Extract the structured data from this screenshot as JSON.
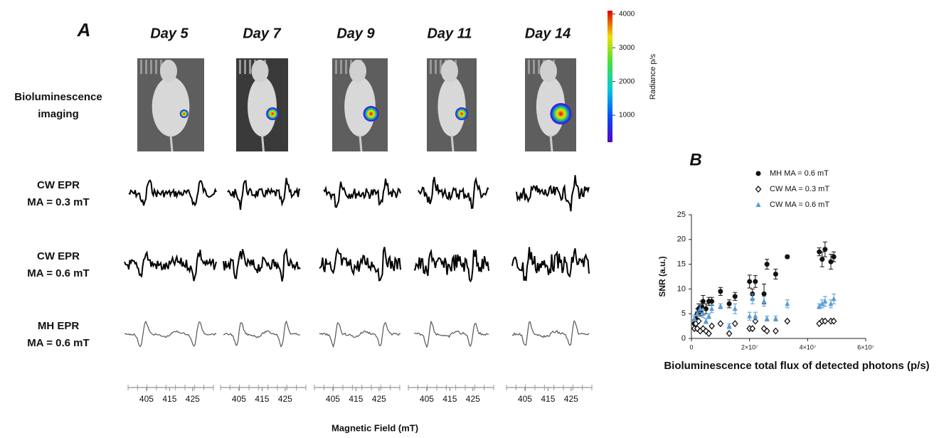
{
  "panel_a": {
    "label": "A",
    "days": [
      "Day 5",
      "Day 7",
      "Day 9",
      "Day 11",
      "Day 14"
    ],
    "rows": [
      [
        "Bioluminescence",
        "imaging"
      ],
      [
        "CW EPR",
        "MA = 0.3 mT"
      ],
      [
        "CW EPR",
        "MA = 0.6 mT"
      ],
      [
        "MH EPR",
        "MA = 0.6 mT"
      ]
    ],
    "colorbar": {
      "label": "Radiance p/s",
      "lim": [
        200,
        4100
      ],
      "ticks": [
        1000,
        2000,
        3000,
        4000
      ]
    },
    "field_axis": {
      "label": "Magnetic Field (mT)",
      "xlim": [
        397,
        434
      ],
      "xticks": [
        405,
        415,
        425
      ]
    }
  },
  "chart_data": {
    "type": "scatter",
    "panel_label": "B",
    "xlabel": "Bioluminescence total flux of detected photons (p/s)",
    "ylabel": "SNR (a.u.)",
    "xlim": [
      0,
      60000000
    ],
    "xticks": [
      {
        "value": 0,
        "label": "0"
      },
      {
        "value": 20000000,
        "label": "2×10⁷"
      },
      {
        "value": 40000000,
        "label": "4×10⁷"
      },
      {
        "value": 60000000,
        "label": "6×10⁷"
      }
    ],
    "ylim": [
      0,
      25
    ],
    "yticks": [
      0,
      5,
      10,
      15,
      20,
      25
    ],
    "series": [
      {
        "name": "MH MA = 0.6 mT",
        "color": "#111111",
        "marker": "circle",
        "x": [
          1000000,
          1500000,
          2000000,
          2500000,
          3000000,
          3500000,
          4000000,
          5000000,
          6000000,
          7000000,
          10000000,
          13000000,
          15000000,
          20000000,
          21000000,
          22000000,
          25000000,
          26000000,
          29000000,
          33000000,
          44000000,
          45000000,
          46000000,
          48000000,
          49000000
        ],
        "values": [
          3,
          4,
          5,
          6,
          5.5,
          6.5,
          7.5,
          6,
          7.5,
          7.5,
          9.5,
          7,
          8.5,
          11.5,
          9,
          11.5,
          9,
          15,
          13,
          16.5,
          17.5,
          16,
          18,
          15.5,
          16.5
        ],
        "errors": [
          0.8,
          0.8,
          1,
          1,
          1,
          1,
          1.2,
          1,
          0.8,
          0.8,
          0.8,
          0.8,
          0.8,
          1.3,
          1,
          1.2,
          2,
          1,
          1,
          0.3,
          0.8,
          1.5,
          1.5,
          1.5,
          1
        ]
      },
      {
        "name": "CW MA = 0.3 mT",
        "color": "#111111",
        "marker": "diamond",
        "x": [
          1000000,
          1500000,
          2000000,
          2500000,
          3000000,
          4000000,
          5000000,
          6000000,
          7000000,
          10000000,
          13000000,
          15000000,
          20000000,
          21000000,
          22000000,
          25000000,
          26000000,
          29000000,
          33000000,
          44000000,
          45000000,
          46000000,
          48000000,
          49000000
        ],
        "values": [
          2,
          3,
          2,
          3.5,
          1.5,
          2,
          1.5,
          1,
          2.5,
          3,
          1,
          3,
          2,
          2,
          3.5,
          2,
          1.5,
          1.5,
          3.5,
          3,
          3.5,
          3.5,
          3.5,
          3.5
        ]
      },
      {
        "name": "CW MA = 0.6 mT",
        "color": "#5b9bd5",
        "marker": "triangle",
        "x": [
          1000000,
          2000000,
          3000000,
          4000000,
          5000000,
          6000000,
          7000000,
          10000000,
          13000000,
          15000000,
          20000000,
          21000000,
          22000000,
          25000000,
          26000000,
          29000000,
          33000000,
          44000000,
          45000000,
          46000000,
          48000000,
          49000000
        ],
        "values": [
          4,
          5,
          6,
          5,
          3.5,
          4.5,
          6,
          6.5,
          2.5,
          6,
          4.5,
          8,
          4.5,
          7.5,
          4,
          4,
          7,
          6.5,
          7,
          7.5,
          7,
          8
        ],
        "errors": [
          0.5,
          0.5,
          0.8,
          0.8,
          0.5,
          0.5,
          0.8,
          0.5,
          0.5,
          1,
          0.8,
          1,
          0.8,
          1,
          0.5,
          0.5,
          0.8,
          0.5,
          0.8,
          1,
          0.8,
          1
        ]
      }
    ]
  }
}
